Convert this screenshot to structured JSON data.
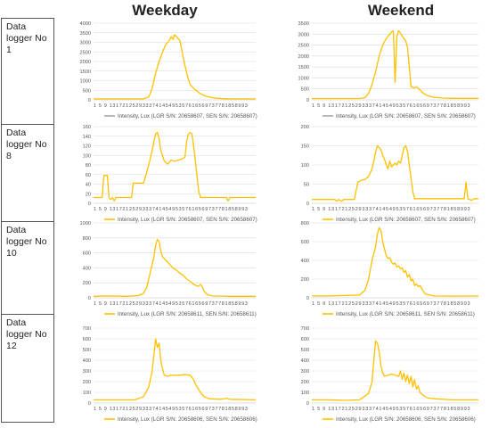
{
  "columns": [
    "Weekday",
    "Weekend"
  ],
  "rows": [
    {
      "label": "Data logger No 1"
    },
    {
      "label": "Data logger No 8"
    },
    {
      "label": "Data logger No 10"
    },
    {
      "label": "Data logger No 12"
    }
  ],
  "colors": {
    "series": "#FFC000",
    "series_gray": "#A6A6A6",
    "grid": "#D9D9D9",
    "axis": "#BFBFBF"
  },
  "x_tick_labels": [
    "1",
    "5",
    "9",
    "13",
    "17",
    "21",
    "25",
    "29",
    "33",
    "37",
    "41",
    "45",
    "49",
    "53",
    "57",
    "61",
    "65",
    "69",
    "73",
    "77",
    "81",
    "85",
    "89",
    "93"
  ],
  "x_tick_text": "1 5 9 131721252933374145495357616569737781858993",
  "chart_data": [
    {
      "id": "weekday-1",
      "type": "line",
      "yticks": [
        0,
        500,
        1000,
        1500,
        2000,
        2500,
        3000,
        3500,
        4000
      ],
      "ylim": [
        0,
        4000
      ],
      "legend_color": "gray",
      "legend": "Intensity, Lux (LGR S/N: 20658607, SEN S/N: 20658607)",
      "points": [
        [
          1,
          50
        ],
        [
          30,
          50
        ],
        [
          33,
          150
        ],
        [
          35,
          600
        ],
        [
          37,
          1400
        ],
        [
          39,
          2000
        ],
        [
          41,
          2500
        ],
        [
          43,
          2900
        ],
        [
          45,
          3100
        ],
        [
          46,
          3300
        ],
        [
          47,
          3150
        ],
        [
          48,
          3400
        ],
        [
          49,
          3300
        ],
        [
          51,
          3100
        ],
        [
          52,
          2700
        ],
        [
          53,
          2200
        ],
        [
          54,
          1800
        ],
        [
          55,
          1400
        ],
        [
          56,
          1050
        ],
        [
          57,
          800
        ],
        [
          59,
          600
        ],
        [
          61,
          450
        ],
        [
          63,
          320
        ],
        [
          65,
          230
        ],
        [
          67,
          170
        ],
        [
          69,
          130
        ],
        [
          71,
          100
        ],
        [
          73,
          80
        ],
        [
          76,
          60
        ],
        [
          80,
          50
        ],
        [
          95,
          50
        ]
      ]
    },
    {
      "id": "weekend-1",
      "type": "line",
      "yticks": [
        0,
        500,
        1000,
        1500,
        2000,
        2500,
        3000,
        3500
      ],
      "ylim": [
        0,
        3500
      ],
      "legend_color": "gray",
      "legend": "Intensity, Lux (LGR S/N: 20658607, SEN S/N: 20658607)",
      "points": [
        [
          1,
          60
        ],
        [
          28,
          60
        ],
        [
          31,
          100
        ],
        [
          33,
          300
        ],
        [
          35,
          700
        ],
        [
          37,
          1300
        ],
        [
          39,
          2000
        ],
        [
          41,
          2500
        ],
        [
          43,
          2800
        ],
        [
          45,
          3000
        ],
        [
          46,
          3100
        ],
        [
          47,
          3150
        ],
        [
          48,
          800
        ],
        [
          49,
          2900
        ],
        [
          50,
          3150
        ],
        [
          51,
          3050
        ],
        [
          52,
          2900
        ],
        [
          53,
          2800
        ],
        [
          54,
          2700
        ],
        [
          55,
          2400
        ],
        [
          56,
          1500
        ],
        [
          57,
          600
        ],
        [
          59,
          550
        ],
        [
          60,
          600
        ],
        [
          62,
          450
        ],
        [
          64,
          300
        ],
        [
          66,
          200
        ],
        [
          70,
          120
        ],
        [
          75,
          80
        ],
        [
          80,
          70
        ],
        [
          95,
          70
        ]
      ]
    },
    {
      "id": "weekday-8",
      "type": "line",
      "yticks": [
        0,
        20,
        40,
        60,
        80,
        100,
        120,
        140,
        160
      ],
      "ylim": [
        0,
        160
      ],
      "legend_color": "yellow",
      "legend": "Intensity, Lux (LGR S/N: 20658607, SEN S/N: 20658607)",
      "points": [
        [
          1,
          12
        ],
        [
          6,
          12
        ],
        [
          7,
          58
        ],
        [
          9,
          58
        ],
        [
          10,
          12
        ],
        [
          11,
          8
        ],
        [
          12,
          12
        ],
        [
          13,
          5
        ],
        [
          14,
          12
        ],
        [
          23,
          12
        ],
        [
          24,
          42
        ],
        [
          30,
          42
        ],
        [
          31,
          55
        ],
        [
          33,
          80
        ],
        [
          35,
          110
        ],
        [
          36,
          130
        ],
        [
          37,
          145
        ],
        [
          38,
          148
        ],
        [
          39,
          135
        ],
        [
          40,
          110
        ],
        [
          41,
          100
        ],
        [
          42,
          88
        ],
        [
          44,
          82
        ],
        [
          46,
          90
        ],
        [
          48,
          88
        ],
        [
          50,
          90
        ],
        [
          52,
          92
        ],
        [
          54,
          96
        ],
        [
          55,
          130
        ],
        [
          56,
          145
        ],
        [
          57,
          148
        ],
        [
          58,
          145
        ],
        [
          59,
          120
        ],
        [
          60,
          90
        ],
        [
          61,
          55
        ],
        [
          62,
          25
        ],
        [
          63,
          12
        ],
        [
          78,
          12
        ],
        [
          79,
          5
        ],
        [
          80,
          12
        ],
        [
          95,
          12
        ]
      ]
    },
    {
      "id": "weekend-8",
      "type": "line",
      "yticks": [
        0,
        50,
        100,
        150,
        200
      ],
      "ylim": [
        0,
        200
      ],
      "legend_color": "yellow",
      "legend": "Intensity, Lux (LGR S/N: 20658607, SEN S/N: 20658607)",
      "points": [
        [
          1,
          10
        ],
        [
          14,
          10
        ],
        [
          15,
          5
        ],
        [
          16,
          10
        ],
        [
          18,
          5
        ],
        [
          19,
          10
        ],
        [
          25,
          10
        ],
        [
          27,
          55
        ],
        [
          29,
          60
        ],
        [
          31,
          62
        ],
        [
          33,
          70
        ],
        [
          35,
          90
        ],
        [
          36,
          110
        ],
        [
          37,
          135
        ],
        [
          38,
          150
        ],
        [
          39,
          145
        ],
        [
          40,
          140
        ],
        [
          41,
          125
        ],
        [
          42,
          115
        ],
        [
          43,
          100
        ],
        [
          44,
          90
        ],
        [
          45,
          110
        ],
        [
          46,
          95
        ],
        [
          47,
          100
        ],
        [
          48,
          105
        ],
        [
          49,
          100
        ],
        [
          50,
          110
        ],
        [
          51,
          105
        ],
        [
          52,
          125
        ],
        [
          53,
          145
        ],
        [
          54,
          150
        ],
        [
          55,
          135
        ],
        [
          56,
          100
        ],
        [
          57,
          65
        ],
        [
          58,
          30
        ],
        [
          59,
          12
        ],
        [
          87,
          12
        ],
        [
          88,
          55
        ],
        [
          89,
          12
        ],
        [
          91,
          8
        ],
        [
          93,
          12
        ],
        [
          95,
          12
        ]
      ]
    },
    {
      "id": "weekday-10",
      "type": "line",
      "yticks": [
        0,
        200,
        400,
        600,
        800,
        1000
      ],
      "ylim": [
        0,
        1000
      ],
      "legend_color": "yellow",
      "legend": "Intensity, Lux (LGR S/N: 20658611, SEN S/N: 20658611)",
      "points": [
        [
          1,
          20
        ],
        [
          10,
          25
        ],
        [
          20,
          20
        ],
        [
          27,
          30
        ],
        [
          30,
          60
        ],
        [
          32,
          150
        ],
        [
          34,
          350
        ],
        [
          36,
          550
        ],
        [
          37,
          700
        ],
        [
          38,
          780
        ],
        [
          39,
          750
        ],
        [
          40,
          620
        ],
        [
          41,
          550
        ],
        [
          43,
          500
        ],
        [
          45,
          450
        ],
        [
          47,
          400
        ],
        [
          49,
          370
        ],
        [
          51,
          330
        ],
        [
          53,
          300
        ],
        [
          55,
          250
        ],
        [
          57,
          220
        ],
        [
          59,
          180
        ],
        [
          61,
          160
        ],
        [
          62,
          155
        ],
        [
          63,
          180
        ],
        [
          64,
          150
        ],
        [
          65,
          90
        ],
        [
          67,
          40
        ],
        [
          70,
          25
        ],
        [
          80,
          20
        ],
        [
          95,
          20
        ]
      ]
    },
    {
      "id": "weekend-10",
      "type": "line",
      "yticks": [
        0,
        200,
        400,
        600,
        800
      ],
      "ylim": [
        0,
        800
      ],
      "legend_color": "yellow",
      "legend": "Intensity, Lux (LGR S/N: 20658611, SEN S/N: 20658611)",
      "points": [
        [
          1,
          20
        ],
        [
          10,
          20
        ],
        [
          20,
          25
        ],
        [
          28,
          30
        ],
        [
          31,
          80
        ],
        [
          33,
          200
        ],
        [
          35,
          400
        ],
        [
          37,
          550
        ],
        [
          38,
          680
        ],
        [
          39,
          750
        ],
        [
          40,
          720
        ],
        [
          41,
          600
        ],
        [
          42,
          520
        ],
        [
          43,
          450
        ],
        [
          44,
          420
        ],
        [
          45,
          430
        ],
        [
          46,
          380
        ],
        [
          47,
          360
        ],
        [
          48,
          370
        ],
        [
          49,
          330
        ],
        [
          50,
          340
        ],
        [
          51,
          310
        ],
        [
          52,
          320
        ],
        [
          53,
          270
        ],
        [
          54,
          290
        ],
        [
          55,
          220
        ],
        [
          56,
          250
        ],
        [
          57,
          180
        ],
        [
          58,
          200
        ],
        [
          59,
          130
        ],
        [
          60,
          150
        ],
        [
          61,
          120
        ],
        [
          62,
          130
        ],
        [
          63,
          100
        ],
        [
          65,
          40
        ],
        [
          70,
          20
        ],
        [
          80,
          18
        ],
        [
          95,
          20
        ]
      ]
    },
    {
      "id": "weekday-12",
      "type": "line",
      "yticks": [
        0,
        100,
        200,
        300,
        400,
        500,
        600,
        700
      ],
      "ylim": [
        0,
        700
      ],
      "legend_color": "yellow",
      "legend": "Intensity, Lux (LGR S/N: 20658606, SEN S/N: 20658606)",
      "points": [
        [
          1,
          30
        ],
        [
          25,
          30
        ],
        [
          30,
          60
        ],
        [
          33,
          150
        ],
        [
          35,
          300
        ],
        [
          36,
          450
        ],
        [
          37,
          600
        ],
        [
          38,
          520
        ],
        [
          39,
          560
        ],
        [
          40,
          400
        ],
        [
          41,
          320
        ],
        [
          42,
          260
        ],
        [
          44,
          250
        ],
        [
          46,
          260
        ],
        [
          50,
          260
        ],
        [
          54,
          265
        ],
        [
          57,
          260
        ],
        [
          59,
          220
        ],
        [
          60,
          180
        ],
        [
          61,
          150
        ],
        [
          63,
          100
        ],
        [
          65,
          60
        ],
        [
          68,
          40
        ],
        [
          75,
          35
        ],
        [
          78,
          45
        ],
        [
          80,
          35
        ],
        [
          95,
          30
        ]
      ]
    },
    {
      "id": "weekend-12",
      "type": "line",
      "yticks": [
        0,
        100,
        200,
        300,
        400,
        500,
        600,
        700
      ],
      "ylim": [
        0,
        700
      ],
      "legend_color": "yellow",
      "legend": "Intensity, Lux (LGR S/N: 20658606, SEN S/N: 20658606)",
      "points": [
        [
          1,
          30
        ],
        [
          10,
          30
        ],
        [
          20,
          25
        ],
        [
          28,
          30
        ],
        [
          33,
          90
        ],
        [
          35,
          200
        ],
        [
          36,
          400
        ],
        [
          37,
          580
        ],
        [
          38,
          560
        ],
        [
          39,
          480
        ],
        [
          40,
          350
        ],
        [
          41,
          280
        ],
        [
          42,
          250
        ],
        [
          44,
          260
        ],
        [
          46,
          270
        ],
        [
          48,
          260
        ],
        [
          50,
          250
        ],
        [
          51,
          300
        ],
        [
          52,
          220
        ],
        [
          53,
          280
        ],
        [
          54,
          200
        ],
        [
          55,
          260
        ],
        [
          56,
          180
        ],
        [
          57,
          250
        ],
        [
          58,
          150
        ],
        [
          59,
          220
        ],
        [
          60,
          130
        ],
        [
          61,
          160
        ],
        [
          62,
          100
        ],
        [
          64,
          70
        ],
        [
          66,
          50
        ],
        [
          70,
          40
        ],
        [
          80,
          30
        ],
        [
          95,
          30
        ]
      ]
    }
  ]
}
